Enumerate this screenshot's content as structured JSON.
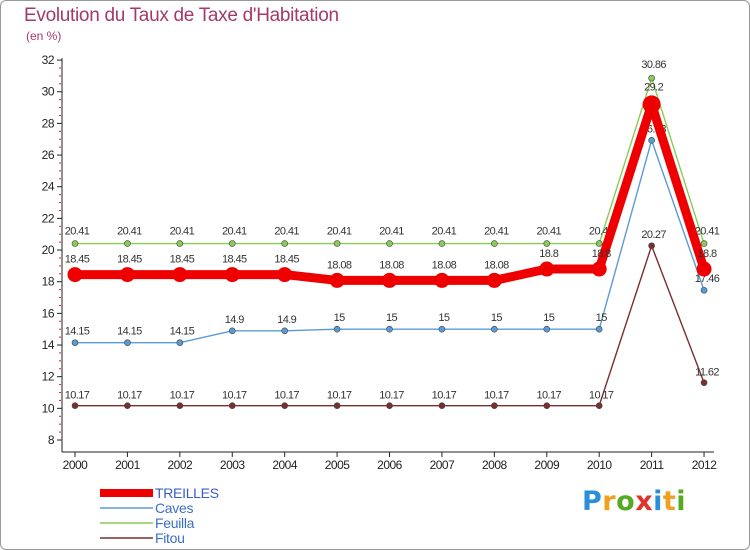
{
  "chart_data": {
    "type": "line",
    "title": "Evolution du Taux de Taxe d'Habitation",
    "ylabel": "(en %)",
    "xlabel": "",
    "categories": [
      "2000",
      "2001",
      "2002",
      "2003",
      "2004",
      "2005",
      "2006",
      "2007",
      "2008",
      "2009",
      "2010",
      "2011",
      "2012"
    ],
    "ylim": [
      8,
      32
    ],
    "yticks": [
      "8",
      "10",
      "12",
      "14",
      "16",
      "18",
      "20",
      "22",
      "24",
      "26",
      "28",
      "30",
      "32"
    ],
    "series": [
      {
        "name": "TREILLES",
        "color": "#ee0000",
        "values": [
          18.45,
          18.45,
          18.45,
          18.45,
          18.45,
          18.08,
          18.08,
          18.08,
          18.08,
          18.8,
          18.8,
          29.2,
          18.8
        ],
        "labels": [
          "18.45",
          "18.45",
          "18.45",
          "18.45",
          "18.45",
          "18.08",
          "18.08",
          "18.08",
          "18.08",
          "18.8",
          "18.8",
          "29.2",
          "18.8"
        ]
      },
      {
        "name": "Caves",
        "color": "#5b9bd5",
        "values": [
          14.15,
          14.15,
          14.15,
          14.9,
          14.9,
          15,
          15,
          15,
          15,
          15,
          15,
          26.93,
          17.46
        ],
        "labels": [
          "14.15",
          "14.15",
          "14.15",
          "14.9",
          "14.9",
          "15",
          "15",
          "15",
          "15",
          "15",
          "15",
          "26.93",
          "17.46"
        ]
      },
      {
        "name": "Feuilla",
        "color": "#88cc55",
        "values": [
          20.41,
          20.41,
          20.41,
          20.41,
          20.41,
          20.41,
          20.41,
          20.41,
          20.41,
          20.41,
          20.41,
          30.86,
          20.41
        ],
        "labels": [
          "20.41",
          "20.41",
          "20.41",
          "20.41",
          "20.41",
          "20.41",
          "20.41",
          "20.41",
          "20.41",
          "20.41",
          "20.41",
          "30.86",
          "20.41"
        ]
      },
      {
        "name": "Fitou",
        "color": "#7a2e2e",
        "values": [
          10.17,
          10.17,
          10.17,
          10.17,
          10.17,
          10.17,
          10.17,
          10.17,
          10.17,
          10.17,
          10.17,
          20.27,
          11.62
        ],
        "labels": [
          "10.17",
          "10.17",
          "10.17",
          "10.17",
          "10.17",
          "10.17",
          "10.17",
          "10.17",
          "10.17",
          "10.17",
          "10.17",
          "20.27",
          "11.62"
        ]
      }
    ],
    "legend": [
      "TREILLES",
      "Caves",
      "Feuilla",
      "Fitou"
    ],
    "legend_position": "bottom-left",
    "grid": false
  },
  "logo": {
    "letters": [
      "P",
      "r",
      "o",
      "x",
      "i",
      "t",
      "i"
    ],
    "colors": [
      "#2a8fd8",
      "#f0a020",
      "#55aa22",
      "#e0332a",
      "#2a8fd8",
      "#f0a020",
      "#55aa22"
    ]
  }
}
